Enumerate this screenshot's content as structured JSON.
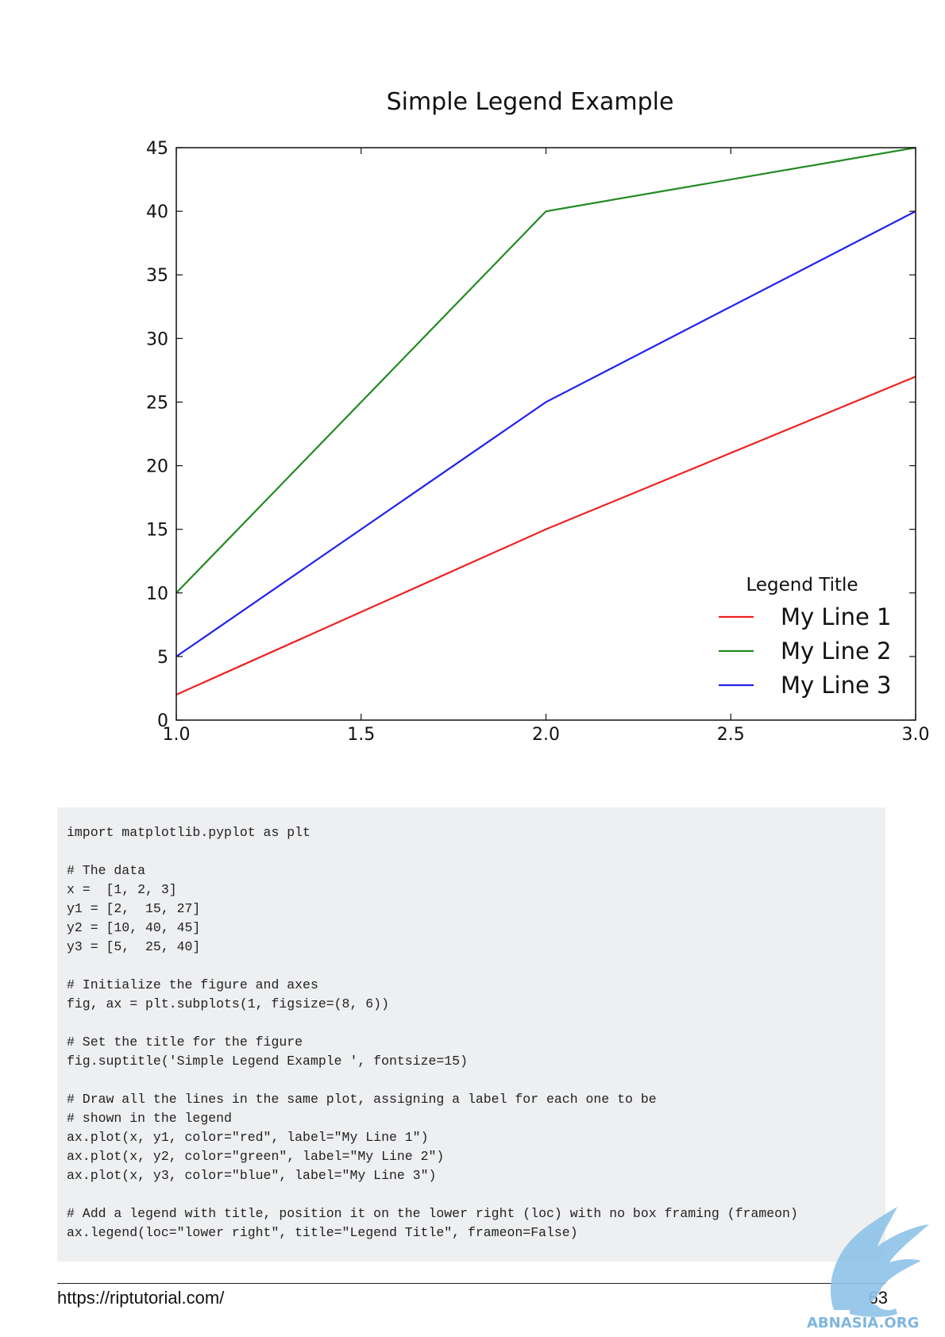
{
  "chart_data": {
    "type": "line",
    "title": "Simple Legend Example",
    "x": [
      1,
      2,
      3
    ],
    "series": [
      {
        "name": "My Line 1",
        "color": "#ee2222",
        "values": [
          2,
          15,
          27
        ]
      },
      {
        "name": "My Line 2",
        "color": "#228b22",
        "values": [
          10,
          40,
          45
        ]
      },
      {
        "name": "My Line 3",
        "color": "#2222ee",
        "values": [
          5,
          25,
          40
        ]
      }
    ],
    "xlim": [
      1.0,
      3.0
    ],
    "ylim": [
      0,
      45
    ],
    "xticks": [
      "1.0",
      "1.5",
      "2.0",
      "2.5",
      "3.0"
    ],
    "yticks": [
      "0",
      "5",
      "10",
      "15",
      "20",
      "25",
      "30",
      "35",
      "40",
      "45"
    ],
    "legend": {
      "title": "Legend Title",
      "placement": "lower-right",
      "frame": false
    },
    "grid": false
  },
  "code": {
    "lines": [
      "import matplotlib.pyplot as plt",
      "",
      "# The data",
      "x =  [1, 2, 3]",
      "y1 = [2,  15, 27]",
      "y2 = [10, 40, 45]",
      "y3 = [5,  25, 40]",
      "",
      "# Initialize the figure and axes",
      "fig, ax = plt.subplots(1, figsize=(8, 6))",
      "",
      "# Set the title for the figure",
      "fig.suptitle('Simple Legend Example ', fontsize=15)",
      "",
      "# Draw all the lines in the same plot, assigning a label for each one to be",
      "# shown in the legend",
      "ax.plot(x, y1, color=\"red\", label=\"My Line 1\")",
      "ax.plot(x, y2, color=\"green\", label=\"My Line 2\")",
      "ax.plot(x, y3, color=\"blue\", label=\"My Line 3\")",
      "",
      "# Add a legend with title, position it on the lower right (loc) with no box framing (frameon)",
      "ax.legend(loc=\"lower right\", title=\"Legend Title\", frameon=False)"
    ]
  },
  "footer": {
    "url": "https://riptutorial.com/",
    "page_number": "63"
  },
  "watermark": {
    "text": "ABNASIA.ORG",
    "color": "#7fb6de"
  }
}
